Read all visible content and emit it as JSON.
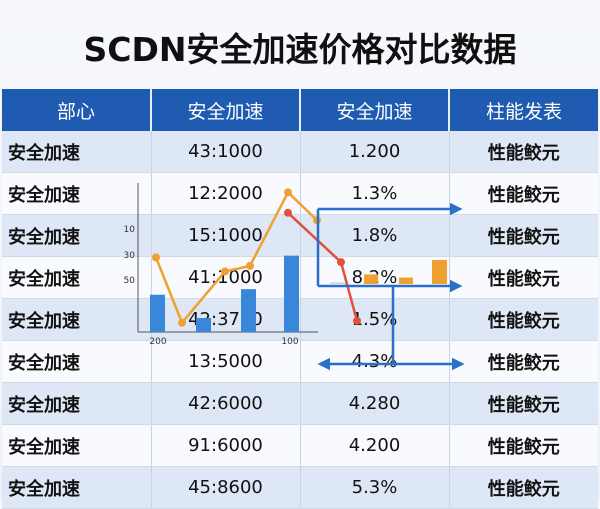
{
  "title": "SCDN安全加速价格对比数据",
  "table": {
    "headers": [
      "部心",
      "安全加速",
      "安全加速",
      "柱能发表"
    ],
    "rows": [
      [
        "安全加速",
        "43:1000",
        "1.200",
        "性能鲛元"
      ],
      [
        "安全加速",
        "12:2000",
        "1.3%",
        "性能鲛元"
      ],
      [
        "安全加速",
        "15:1000",
        "1.8%",
        "性能鲛元"
      ],
      [
        "安全加速",
        "41:1000",
        "8.2%",
        "性能鲛元"
      ],
      [
        "安全加速",
        "42:3700",
        "1.5%",
        "性能鲛元"
      ],
      [
        "安全加速",
        "13:5000",
        "4.3%",
        "性能鲛元"
      ],
      [
        "安全加速",
        "42:6000",
        "4.280",
        "性能鲛元"
      ],
      [
        "安全加速",
        "91:6000",
        "4.200",
        "性能鲛元"
      ],
      [
        "安全加速",
        "45:8600",
        "5.3%",
        "性能鲛元"
      ]
    ]
  },
  "colors": {
    "header_bg": "#1f5bb0",
    "row_alt": "#dde7f5",
    "bar_blue": "#3a86d8",
    "line_orange": "#f0a030",
    "line_red": "#e0503a",
    "arrow_blue": "#2a6fc8"
  },
  "chart_data": {
    "type": "line",
    "y_tick_labels": [
      "10",
      "30",
      "50"
    ],
    "x_tick_labels": [
      "200",
      "100"
    ],
    "bars": [
      40,
      15,
      46,
      82
    ],
    "line_orange": [
      80,
      10,
      65,
      71,
      150,
      120
    ],
    "line_red": [
      128,
      75,
      12
    ],
    "small_bars": [
      2,
      12,
      8,
      30
    ]
  }
}
